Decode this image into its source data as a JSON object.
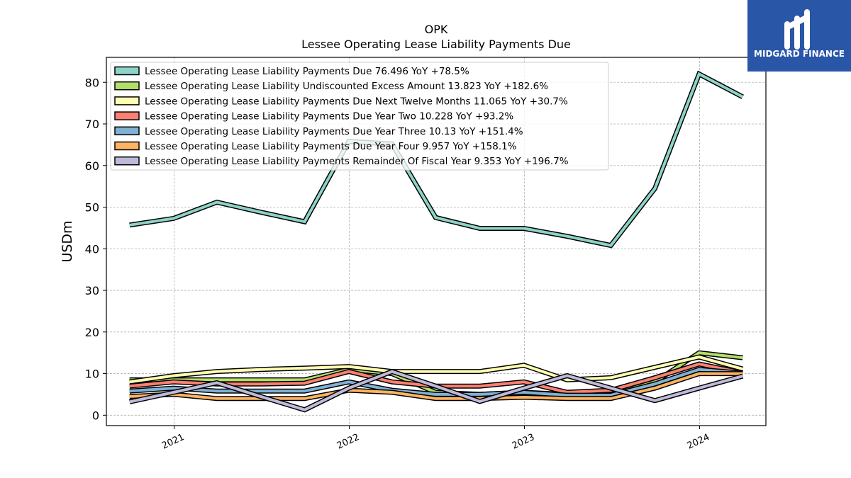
{
  "chart_data": {
    "type": "line",
    "title": "OPK",
    "subtitle": "Lessee Operating Lease Liability Payments Due",
    "ylabel": "USDm",
    "xlabel": "",
    "ylim": [
      -2.5,
      86
    ],
    "yticks": [
      0,
      10,
      20,
      30,
      40,
      50,
      60,
      70,
      80
    ],
    "xticks": [
      "2021",
      "2022",
      "2023",
      "2024"
    ],
    "grid": true,
    "legend_position": "top-left",
    "x": [
      "2020-09-30",
      "2020-12-31",
      "2021-03-31",
      "2021-06-30",
      "2021-09-30",
      "2021-12-31",
      "2022-03-31",
      "2022-06-30",
      "2022-09-30",
      "2022-12-31",
      "2023-03-31",
      "2023-06-30",
      "2023-09-30",
      "2023-12-31",
      "2024-03-31"
    ],
    "series": [
      {
        "name": "Lessee Operating Lease Liability Payments Due",
        "legend": "Lessee Operating Lease Liability Payments Due  76.496 YoY +78.5%",
        "color": "#8dd3c7",
        "values": [
          45.7,
          47.3,
          51.2,
          48.8,
          46.5,
          65.8,
          65.2,
          47.5,
          44.9,
          44.9,
          43.0,
          40.8,
          54.5,
          82.0,
          76.5
        ]
      },
      {
        "name": "Lessee Operating Lease Liability Undiscounted Excess Amount",
        "legend": "Lessee Operating Lease Liability Undiscounted Excess Amount  13.823 YoY +182.6%",
        "color": "#b3de69",
        "values": [
          8.5,
          8.5,
          8.5,
          8.5,
          8.5,
          11.0,
          10.0,
          5.5,
          5.0,
          5.5,
          5.0,
          5.0,
          8.0,
          15.0,
          13.8
        ]
      },
      {
        "name": "Lessee Operating Lease Liability Payments Due Next Twelve Months",
        "legend": "Lessee Operating Lease Liability Payments Due Next Twelve Months  11.065 YoY +30.7%",
        "color": "#ffffb3",
        "values": [
          8.0,
          9.5,
          10.5,
          11.0,
          11.3,
          11.7,
          10.5,
          10.5,
          10.5,
          12.0,
          8.5,
          9.0,
          11.5,
          14.0,
          11.1
        ]
      },
      {
        "name": "Lessee Operating Lease Liability Payments Due Year Two",
        "legend": "Lessee Operating Lease Liability Payments Due Year Two  10.228 YoY +93.2%",
        "color": "#fb8072",
        "values": [
          7.0,
          8.0,
          7.5,
          7.5,
          7.7,
          10.5,
          8.0,
          7.0,
          7.0,
          8.0,
          5.5,
          6.0,
          9.0,
          12.3,
          10.2
        ]
      },
      {
        "name": "Lessee Operating Lease Liability Payments Due Year Three",
        "legend": "Lessee Operating Lease Liability Payments Due Year Three  10.13 YoY +151.4%",
        "color": "#80b1d3",
        "values": [
          5.8,
          6.5,
          5.8,
          5.8,
          5.8,
          8.0,
          6.0,
          5.0,
          5.0,
          5.5,
          4.8,
          4.8,
          7.5,
          11.0,
          10.1
        ]
      },
      {
        "name": "Lessee Operating Lease Liability Payments Due Year Four",
        "legend": "Lessee Operating Lease Liability Payments Due Year Four  9.957 YoY +158.1%",
        "color": "#fdb462",
        "values": [
          4.5,
          5.0,
          4.0,
          4.0,
          4.0,
          6.0,
          5.5,
          4.0,
          4.0,
          4.3,
          4.0,
          4.0,
          6.5,
          10.0,
          10.0
        ]
      },
      {
        "name": "Lessee Operating Lease Liability Payments Remainder Of Fiscal Year",
        "legend": "Lessee Operating Lease Liability Payments Remainder Of Fiscal Year  9.353 YoY +196.7%",
        "color": "#bebada",
        "values": [
          3.2,
          5.5,
          7.8,
          4.5,
          1.3,
          6.5,
          10.5,
          7.0,
          3.3,
          6.5,
          9.5,
          6.5,
          3.5,
          6.5,
          9.4
        ]
      }
    ]
  },
  "branding": {
    "logo_text": "MIDGARD FINANCE",
    "logo_bg": "#2a56a8"
  }
}
